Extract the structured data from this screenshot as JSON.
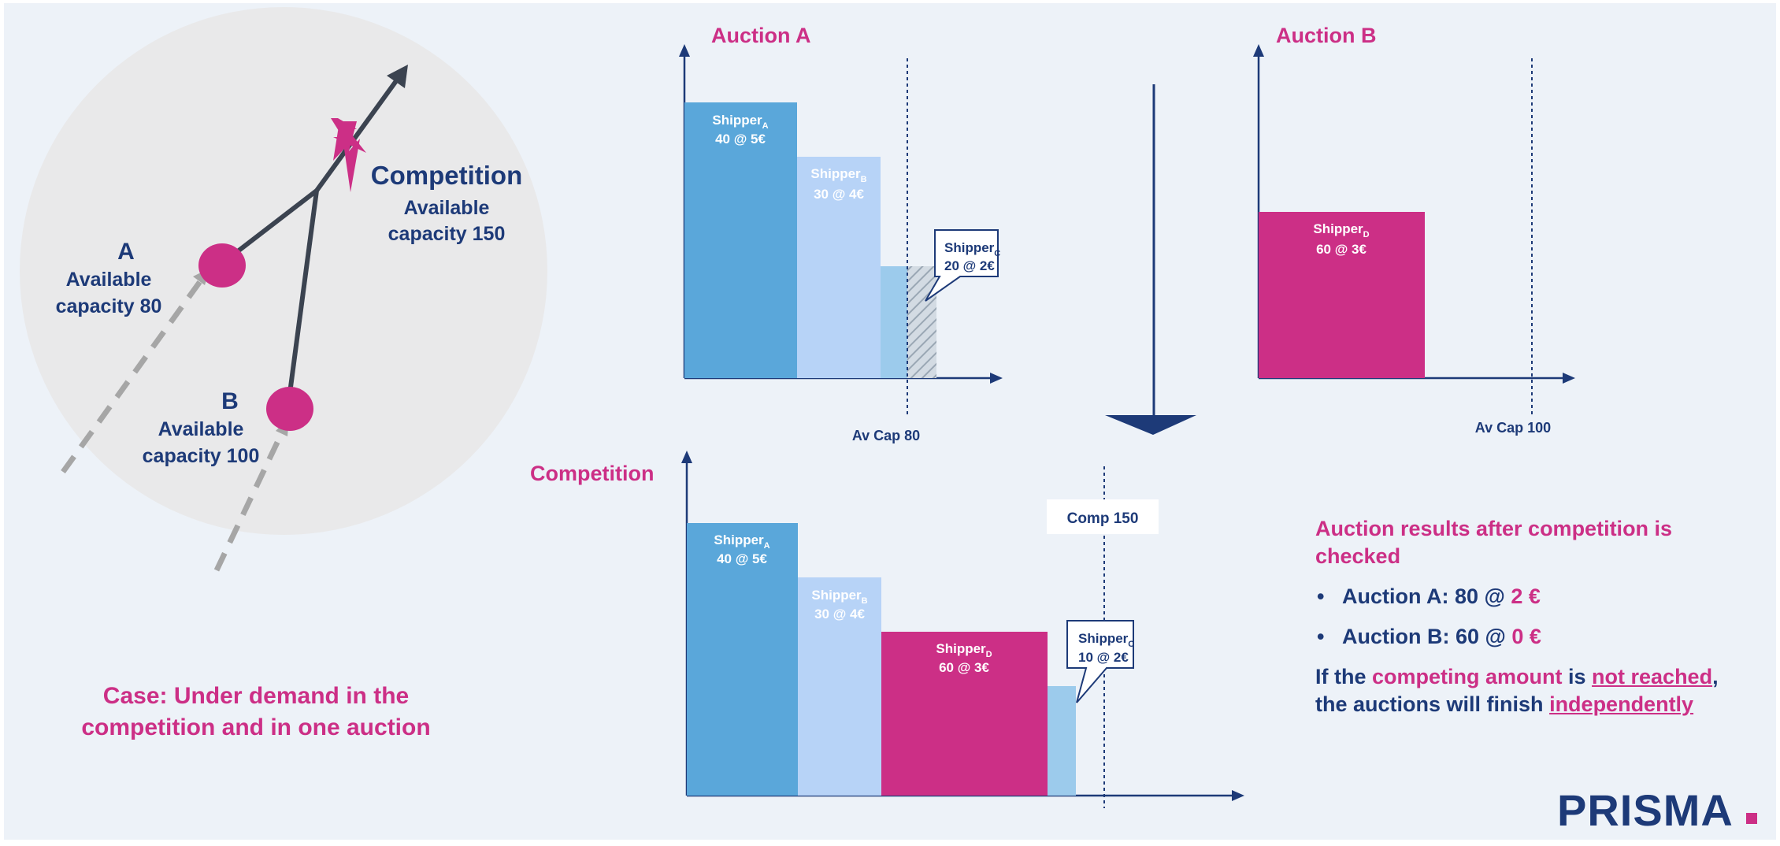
{
  "colors": {
    "navy": "#1d3a78",
    "magenta": "#cc2f86",
    "blue": "#5aa7da",
    "light_blue": "#b7d3f7",
    "pale_blue": "#9ccbec",
    "gray_circle": "#e9e9ea"
  },
  "network": {
    "competition_title": "Competition",
    "competition_capacity": [
      "Available",
      "capacity 150"
    ],
    "point_a_letter": "A",
    "point_a_capacity": [
      "Available",
      "capacity 80"
    ],
    "point_b_letter": "B",
    "point_b_capacity": [
      "Available",
      "capacity 100"
    ],
    "icons": [
      "lightning-icon",
      "arrow-icon"
    ]
  },
  "case_text": "Case: Under demand in the competition and in one auction",
  "chart_data": [
    {
      "type": "bar",
      "title": "Auction A",
      "capacity_line": {
        "label": "Av Cap 80",
        "value": 80
      },
      "bars": [
        {
          "shipper": "Shipper",
          "sub": "A",
          "offer": "40 @ 5€",
          "amount": 40,
          "price": 5
        },
        {
          "shipper": "Shipper",
          "sub": "B",
          "offer": "30 @ 4€",
          "amount": 30,
          "price": 4
        },
        {
          "shipper": "Shipper",
          "sub": "C",
          "offer": "20 @ 2€",
          "amount": 20,
          "price": 2,
          "callout": true
        }
      ]
    },
    {
      "type": "bar",
      "title": "Auction B",
      "capacity_line": {
        "label": "Av Cap 100",
        "value": 100
      },
      "bars": [
        {
          "shipper": "Shipper",
          "sub": "D",
          "offer": "60 @ 3€",
          "amount": 60,
          "price": 3
        }
      ]
    },
    {
      "type": "bar",
      "title": "Competition",
      "capacity_line": {
        "label": "Comp 150",
        "value": 150
      },
      "bars": [
        {
          "shipper": "Shipper",
          "sub": "A",
          "offer": "40 @ 5€",
          "amount": 40,
          "price": 5
        },
        {
          "shipper": "Shipper",
          "sub": "B",
          "offer": "30 @ 4€",
          "amount": 30,
          "price": 4
        },
        {
          "shipper": "Shipper",
          "sub": "D",
          "offer": "60 @ 3€",
          "amount": 60,
          "price": 3
        },
        {
          "shipper": "Shipper",
          "sub": "C",
          "offer": "10 @ 2€",
          "amount": 10,
          "price": 2,
          "callout": true
        }
      ]
    }
  ],
  "results": {
    "heading": "Auction results after competition is checked",
    "items": [
      {
        "label": "Auction A: 80 @ ",
        "price": "2 €"
      },
      {
        "label": "Auction B: 60 @ ",
        "price": "0 €"
      }
    ],
    "note": {
      "p1": "If the ",
      "p2": "competing amount",
      "p3": " is ",
      "p4": "not reached",
      "p5": ", the auctions ",
      "p6": "will finish",
      "p7": " ",
      "p8": "independently"
    }
  },
  "logo": {
    "text": "PRISMA",
    "dot": "."
  }
}
